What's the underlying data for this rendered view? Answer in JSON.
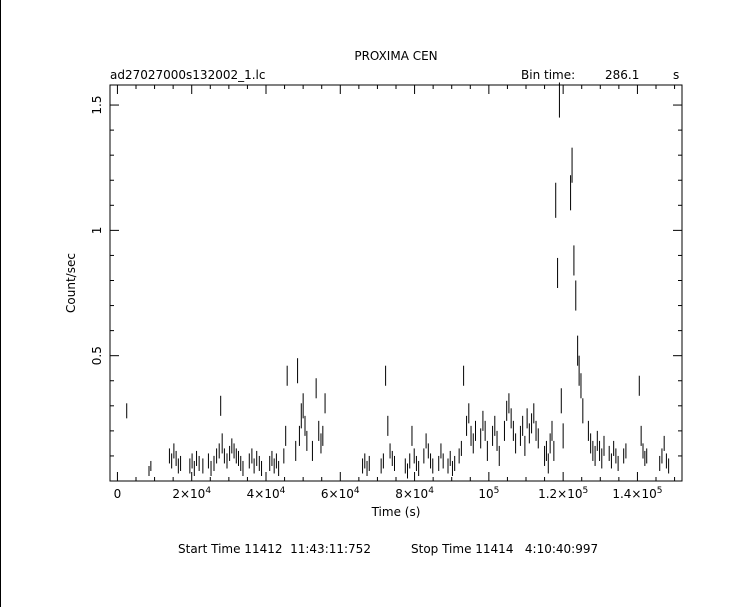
{
  "chart_data": {
    "type": "scatter",
    "title": "PROXIMA CEN",
    "filename": "ad27027000s132002_1.lc",
    "bin_time_label": "Bin time:",
    "bin_time_value": "286.1",
    "bin_time_unit": "s",
    "xlabel": "Time (s)",
    "ylabel": "Count/sec",
    "xlim": [
      -2000,
      152000
    ],
    "ylim": [
      0,
      1.58
    ],
    "x_ticks": [
      {
        "value": 0,
        "base": "0",
        "exp": ""
      },
      {
        "value": 20000,
        "base": "2×10",
        "exp": "4"
      },
      {
        "value": 40000,
        "base": "4×10",
        "exp": "4"
      },
      {
        "value": 60000,
        "base": "6×10",
        "exp": "4"
      },
      {
        "value": 80000,
        "base": "8×10",
        "exp": "4"
      },
      {
        "value": 100000,
        "base": "10",
        "exp": "5"
      },
      {
        "value": 120000,
        "base": "1.2×10",
        "exp": "5"
      },
      {
        "value": 140000,
        "base": "1.4×10",
        "exp": "5"
      }
    ],
    "y_ticks": [
      {
        "value": 0.5,
        "label": "0.5"
      },
      {
        "value": 1.0,
        "label": "1"
      },
      {
        "value": 1.5,
        "label": "1.5"
      }
    ],
    "points": [
      [
        2500,
        0.28,
        0.03
      ],
      [
        8500,
        0.04,
        0.02
      ],
      [
        9000,
        0.06,
        0.02
      ],
      [
        14000,
        0.1,
        0.03
      ],
      [
        14600,
        0.08,
        0.03
      ],
      [
        15200,
        0.12,
        0.03
      ],
      [
        15800,
        0.09,
        0.03
      ],
      [
        16400,
        0.06,
        0.03
      ],
      [
        17000,
        0.07,
        0.03
      ],
      [
        19500,
        0.06,
        0.03
      ],
      [
        20100,
        0.08,
        0.03
      ],
      [
        20700,
        0.05,
        0.03
      ],
      [
        21300,
        0.09,
        0.03
      ],
      [
        22000,
        0.07,
        0.03
      ],
      [
        23000,
        0.06,
        0.03
      ],
      [
        24500,
        0.08,
        0.03
      ],
      [
        25200,
        0.05,
        0.03
      ],
      [
        26000,
        0.07,
        0.03
      ],
      [
        26700,
        0.1,
        0.03
      ],
      [
        27400,
        0.12,
        0.03
      ],
      [
        27800,
        0.3,
        0.04
      ],
      [
        28200,
        0.15,
        0.04
      ],
      [
        28800,
        0.1,
        0.03
      ],
      [
        29500,
        0.08,
        0.03
      ],
      [
        30200,
        0.11,
        0.03
      ],
      [
        30800,
        0.14,
        0.03
      ],
      [
        31400,
        0.12,
        0.03
      ],
      [
        32000,
        0.1,
        0.03
      ],
      [
        32600,
        0.09,
        0.03
      ],
      [
        33200,
        0.07,
        0.03
      ],
      [
        33800,
        0.05,
        0.03
      ],
      [
        35500,
        0.08,
        0.03
      ],
      [
        36200,
        0.1,
        0.03
      ],
      [
        36800,
        0.06,
        0.03
      ],
      [
        37500,
        0.09,
        0.03
      ],
      [
        38200,
        0.07,
        0.03
      ],
      [
        38800,
        0.05,
        0.03
      ],
      [
        41000,
        0.07,
        0.03
      ],
      [
        41600,
        0.09,
        0.03
      ],
      [
        42200,
        0.06,
        0.03
      ],
      [
        42800,
        0.08,
        0.03
      ],
      [
        43400,
        0.05,
        0.03
      ],
      [
        44800,
        0.1,
        0.03
      ],
      [
        45300,
        0.18,
        0.04
      ],
      [
        45700,
        0.42,
        0.04
      ],
      [
        48000,
        0.12,
        0.04
      ],
      [
        48500,
        0.44,
        0.05
      ],
      [
        49000,
        0.18,
        0.04
      ],
      [
        49500,
        0.26,
        0.05
      ],
      [
        50000,
        0.3,
        0.05
      ],
      [
        50500,
        0.22,
        0.04
      ],
      [
        51000,
        0.16,
        0.04
      ],
      [
        52500,
        0.12,
        0.04
      ],
      [
        53500,
        0.37,
        0.04
      ],
      [
        54200,
        0.2,
        0.04
      ],
      [
        54800,
        0.15,
        0.04
      ],
      [
        55300,
        0.18,
        0.04
      ],
      [
        55900,
        0.31,
        0.04
      ],
      [
        66000,
        0.06,
        0.03
      ],
      [
        66600,
        0.08,
        0.03
      ],
      [
        67200,
        0.05,
        0.03
      ],
      [
        67800,
        0.07,
        0.03
      ],
      [
        71000,
        0.06,
        0.03
      ],
      [
        71600,
        0.08,
        0.03
      ],
      [
        72200,
        0.42,
        0.04
      ],
      [
        72800,
        0.22,
        0.04
      ],
      [
        73400,
        0.12,
        0.03
      ],
      [
        74000,
        0.09,
        0.03
      ],
      [
        74600,
        0.07,
        0.03
      ],
      [
        77500,
        0.06,
        0.03
      ],
      [
        78100,
        0.04,
        0.03
      ],
      [
        78700,
        0.08,
        0.03
      ],
      [
        79300,
        0.18,
        0.04
      ],
      [
        79900,
        0.1,
        0.03
      ],
      [
        80500,
        0.07,
        0.03
      ],
      [
        81100,
        0.05,
        0.03
      ],
      [
        82500,
        0.1,
        0.03
      ],
      [
        83100,
        0.16,
        0.03
      ],
      [
        83700,
        0.12,
        0.03
      ],
      [
        84300,
        0.08,
        0.03
      ],
      [
        84900,
        0.06,
        0.03
      ],
      [
        86500,
        0.07,
        0.03
      ],
      [
        87100,
        0.12,
        0.03
      ],
      [
        87700,
        0.08,
        0.03
      ],
      [
        89000,
        0.06,
        0.03
      ],
      [
        89600,
        0.09,
        0.03
      ],
      [
        90200,
        0.05,
        0.03
      ],
      [
        90800,
        0.07,
        0.03
      ],
      [
        92000,
        0.1,
        0.03
      ],
      [
        92600,
        0.13,
        0.03
      ],
      [
        93200,
        0.42,
        0.04
      ],
      [
        94000,
        0.22,
        0.04
      ],
      [
        94600,
        0.27,
        0.04
      ],
      [
        95200,
        0.18,
        0.04
      ],
      [
        95800,
        0.15,
        0.04
      ],
      [
        96400,
        0.2,
        0.04
      ],
      [
        97800,
        0.17,
        0.04
      ],
      [
        98400,
        0.24,
        0.04
      ],
      [
        99000,
        0.2,
        0.04
      ],
      [
        99600,
        0.12,
        0.04
      ],
      [
        101000,
        0.18,
        0.04
      ],
      [
        101600,
        0.22,
        0.04
      ],
      [
        102200,
        0.16,
        0.04
      ],
      [
        102800,
        0.1,
        0.04
      ],
      [
        104200,
        0.2,
        0.04
      ],
      [
        104800,
        0.28,
        0.04
      ],
      [
        105400,
        0.31,
        0.04
      ],
      [
        106000,
        0.25,
        0.04
      ],
      [
        106600,
        0.2,
        0.04
      ],
      [
        107200,
        0.15,
        0.04
      ],
      [
        108500,
        0.18,
        0.04
      ],
      [
        109100,
        0.22,
        0.04
      ],
      [
        109700,
        0.14,
        0.04
      ],
      [
        110300,
        0.25,
        0.04
      ],
      [
        110900,
        0.19,
        0.04
      ],
      [
        111500,
        0.23,
        0.04
      ],
      [
        112100,
        0.27,
        0.04
      ],
      [
        112700,
        0.2,
        0.04
      ],
      [
        113300,
        0.17,
        0.04
      ],
      [
        115000,
        0.1,
        0.04
      ],
      [
        115500,
        0.12,
        0.04
      ],
      [
        116000,
        0.07,
        0.04
      ],
      [
        116500,
        0.15,
        0.04
      ],
      [
        117000,
        0.2,
        0.04
      ],
      [
        117500,
        0.12,
        0.04
      ],
      [
        118000,
        1.12,
        0.07
      ],
      [
        118500,
        0.83,
        0.06
      ],
      [
        119000,
        1.52,
        0.07
      ],
      [
        119500,
        0.32,
        0.05
      ],
      [
        120000,
        0.18,
        0.05
      ],
      [
        122000,
        1.15,
        0.07
      ],
      [
        122400,
        1.26,
        0.07
      ],
      [
        122900,
        0.88,
        0.06
      ],
      [
        123400,
        0.74,
        0.06
      ],
      [
        123900,
        0.52,
        0.06
      ],
      [
        124300,
        0.44,
        0.06
      ],
      [
        124800,
        0.38,
        0.05
      ],
      [
        125300,
        0.28,
        0.05
      ],
      [
        126800,
        0.2,
        0.04
      ],
      [
        127400,
        0.15,
        0.04
      ],
      [
        128000,
        0.12,
        0.04
      ],
      [
        128600,
        0.1,
        0.04
      ],
      [
        129200,
        0.16,
        0.04
      ],
      [
        129800,
        0.12,
        0.04
      ],
      [
        130400,
        0.09,
        0.04
      ],
      [
        131000,
        0.14,
        0.04
      ],
      [
        132400,
        0.11,
        0.03
      ],
      [
        133000,
        0.08,
        0.03
      ],
      [
        133600,
        0.13,
        0.03
      ],
      [
        134200,
        0.1,
        0.03
      ],
      [
        134800,
        0.07,
        0.03
      ],
      [
        136300,
        0.1,
        0.03
      ],
      [
        136900,
        0.12,
        0.03
      ],
      [
        140500,
        0.38,
        0.04
      ],
      [
        141000,
        0.18,
        0.04
      ],
      [
        141500,
        0.12,
        0.03
      ],
      [
        142000,
        0.09,
        0.03
      ],
      [
        142500,
        0.1,
        0.03
      ],
      [
        146000,
        0.07,
        0.03
      ],
      [
        146600,
        0.1,
        0.03
      ],
      [
        147200,
        0.15,
        0.03
      ],
      [
        147800,
        0.08,
        0.03
      ],
      [
        148400,
        0.06,
        0.03
      ]
    ],
    "footer_start": "Start Time 11412  11:43:11:752",
    "footer_stop": "Stop Time 11414   4:10:40:997"
  }
}
